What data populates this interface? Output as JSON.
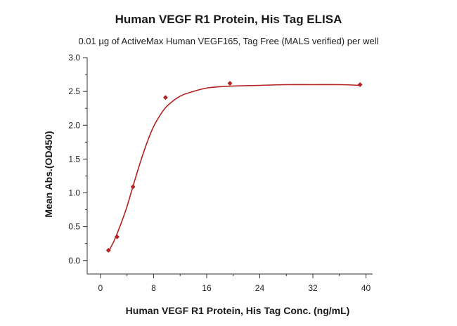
{
  "chart_data": {
    "type": "scatter",
    "title": "Human VEGF R1 Protein, His Tag ELISA",
    "subtitle": "0.01 µg of ActiveMax  Human VEGF165, Tag Free (MALS verified) per well",
    "xlabel": "Human VEGF R1 Protein, His Tag Conc. (ng/mL)",
    "ylabel": "Mean Abs.(OD450)",
    "xlim": [
      -2,
      41
    ],
    "ylim": [
      -0.2,
      3.0
    ],
    "x_ticks": [
      0,
      8,
      16,
      24,
      32,
      40
    ],
    "y_ticks": [
      0.0,
      0.5,
      1.0,
      1.5,
      2.0,
      2.5,
      3.0
    ],
    "x_tick_labels": [
      "0",
      "8",
      "16",
      "24",
      "32",
      "40"
    ],
    "y_tick_labels": [
      "0.0",
      "0.5",
      "1.0",
      "1.5",
      "2.0",
      "2.5",
      "3.0"
    ],
    "grid": false,
    "colors": {
      "series": "#b22222",
      "axis": "#333333"
    },
    "series": [
      {
        "x": [
          1.2,
          2.5,
          4.9,
          9.8,
          19.5,
          39.1
        ],
        "y": [
          0.15,
          0.35,
          1.09,
          2.41,
          2.62,
          2.6
        ]
      }
    ],
    "fit_curve": {
      "x": [
        1.2,
        2,
        3,
        4,
        5,
        6,
        7,
        8,
        9,
        10,
        12,
        14,
        16,
        18,
        20,
        24,
        28,
        32,
        36,
        39.1
      ],
      "y": [
        0.13,
        0.28,
        0.52,
        0.8,
        1.13,
        1.45,
        1.74,
        1.98,
        2.15,
        2.28,
        2.43,
        2.5,
        2.55,
        2.57,
        2.58,
        2.59,
        2.6,
        2.6,
        2.6,
        2.59
      ]
    }
  }
}
